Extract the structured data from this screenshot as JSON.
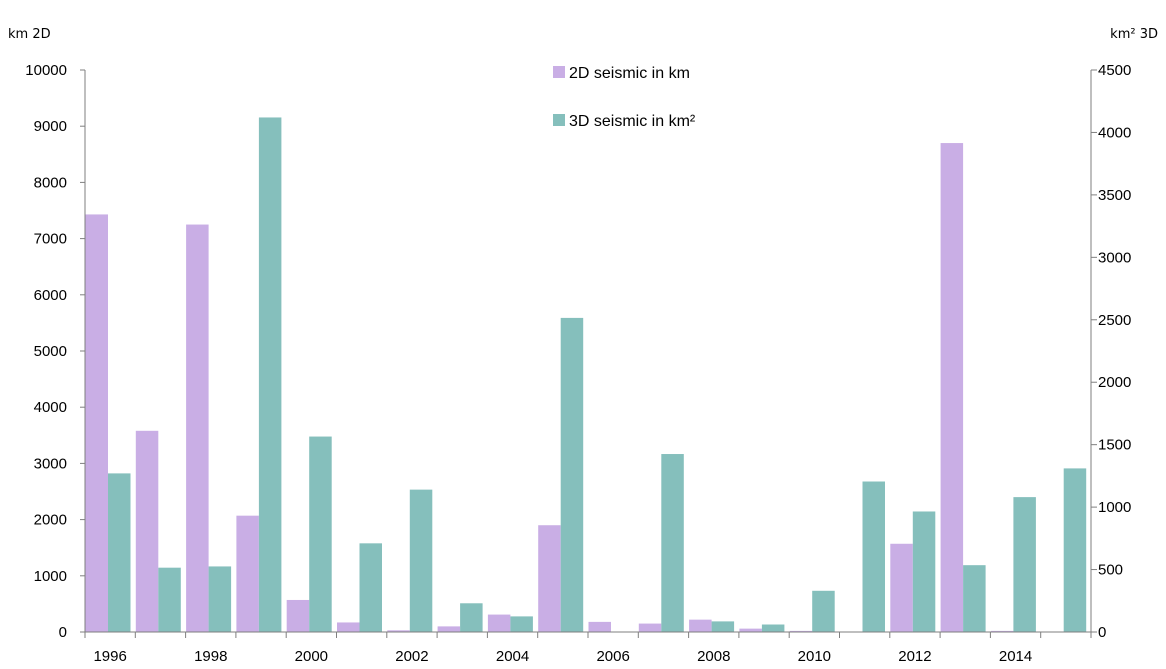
{
  "chart_data": {
    "type": "bar",
    "title": "",
    "left_axis_unit": "km 2D",
    "right_axis_unit": "km² 3D",
    "categories": [
      "1996",
      "1997",
      "1998",
      "1999",
      "2000",
      "2001",
      "2002",
      "2003",
      "2004",
      "2005",
      "2006",
      "2007",
      "2008",
      "2009",
      "2010",
      "2011",
      "2012",
      "2013",
      "2014",
      "2015"
    ],
    "x_tick_labels": [
      "1996",
      "1998",
      "2000",
      "2002",
      "2004",
      "2006",
      "2008",
      "2010",
      "2012",
      "2014"
    ],
    "series": [
      {
        "name": "2D seismic in km",
        "axis": "left",
        "color": "#c9aee5",
        "values": [
          7430,
          3580,
          7250,
          2070,
          570,
          170,
          30,
          100,
          310,
          1900,
          180,
          150,
          220,
          60,
          20,
          0,
          1570,
          8700,
          20,
          0
        ]
      },
      {
        "name": "3D seismic in km²",
        "axis": "right",
        "color": "#85bfbc",
        "values": [
          1270,
          515,
          525,
          4120,
          1565,
          710,
          1140,
          230,
          125,
          2515,
          0,
          1425,
          85,
          60,
          330,
          1205,
          965,
          535,
          1080,
          1310
        ]
      }
    ],
    "ylim_left": [
      0,
      10000
    ],
    "yticks_left": [
      "0",
      "1000",
      "2000",
      "3000",
      "4000",
      "5000",
      "6000",
      "7000",
      "8000",
      "9000",
      "10000"
    ],
    "ylim_right": [
      0,
      4500
    ],
    "yticks_right": [
      "0",
      "500",
      "1000",
      "1500",
      "2000",
      "2500",
      "3000",
      "3500",
      "4000",
      "4500"
    ],
    "grid": false,
    "legend_position": "top-center"
  }
}
